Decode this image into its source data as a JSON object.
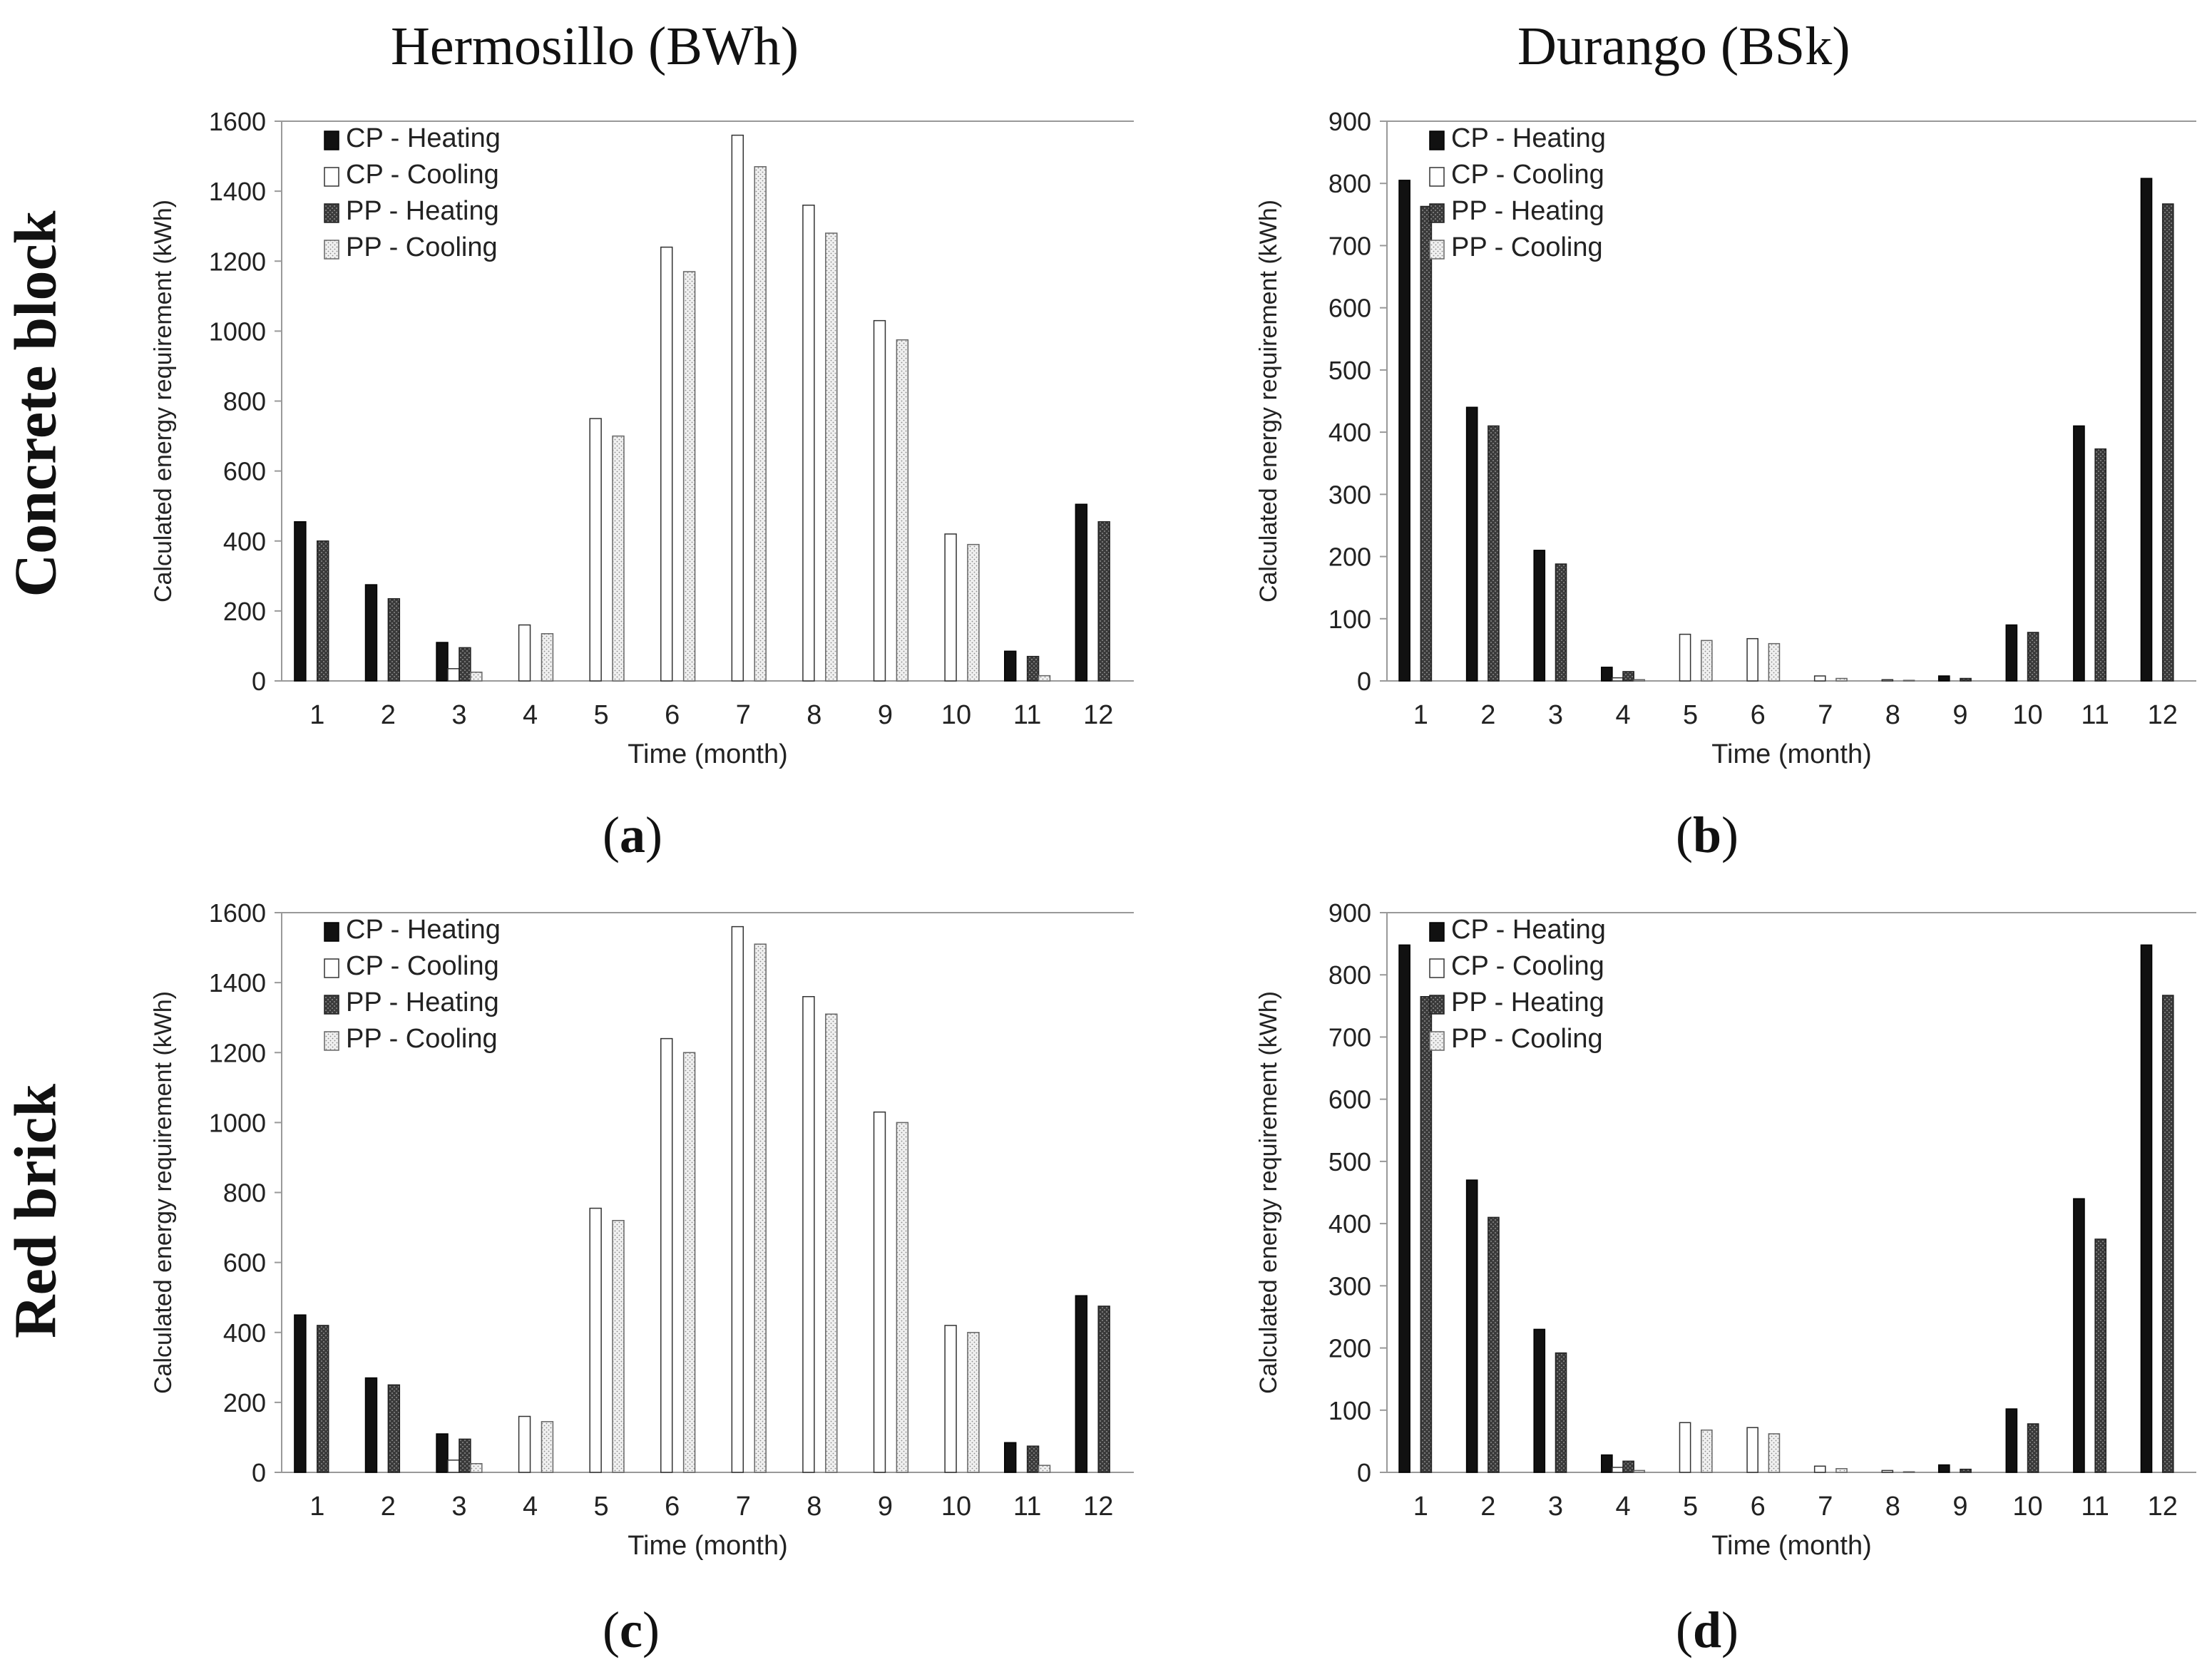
{
  "column_titles": [
    "Hermosillo (BWh)",
    "Durango (BSk)"
  ],
  "row_titles": [
    "Concrete block",
    "Red brick"
  ],
  "colors": {
    "heating_cp": "#111111",
    "heating_pp": "#3a3a3a",
    "cooling_cp": "#ffffff",
    "cooling_pp": "#f0f0f0",
    "axis": "#999999",
    "text": "#222222"
  },
  "chart_data": [
    {
      "type": "bar",
      "panel": "a",
      "title": "Hermosillo (BWh) - Concrete block",
      "categories": [
        "1",
        "2",
        "3",
        "4",
        "5",
        "6",
        "7",
        "8",
        "9",
        "10",
        "11",
        "12"
      ],
      "xlabel": "Time (month)",
      "ylabel": "Calculated energy requirement (kWh)",
      "ylim": [
        0,
        1600
      ],
      "yticks": [
        0,
        200,
        400,
        600,
        800,
        1000,
        1200,
        1400,
        1600
      ],
      "legend": [
        "CP - Heating",
        "CP - Cooling",
        "PP - Heating",
        "PP - Cooling"
      ],
      "legend_position": "top-left",
      "series": [
        {
          "name": "CP - Heating",
          "values": [
            455,
            275,
            110,
            0,
            0,
            0,
            0,
            0,
            0,
            0,
            85,
            505
          ]
        },
        {
          "name": "CP - Cooling",
          "values": [
            0,
            0,
            35,
            160,
            750,
            1240,
            1560,
            1360,
            1030,
            420,
            0,
            0
          ]
        },
        {
          "name": "PP - Heating",
          "values": [
            400,
            235,
            95,
            0,
            0,
            0,
            0,
            0,
            0,
            0,
            70,
            455
          ]
        },
        {
          "name": "PP - Cooling",
          "values": [
            0,
            0,
            25,
            135,
            700,
            1170,
            1470,
            1280,
            975,
            390,
            15,
            0
          ]
        }
      ]
    },
    {
      "type": "bar",
      "panel": "b",
      "title": "Durango (BSk) - Concrete block",
      "categories": [
        "1",
        "2",
        "3",
        "4",
        "5",
        "6",
        "7",
        "8",
        "9",
        "10",
        "11",
        "12"
      ],
      "xlabel": "Time (month)",
      "ylabel": "Calculated energy requirement (kWh)",
      "ylim": [
        0,
        900
      ],
      "yticks": [
        0,
        100,
        200,
        300,
        400,
        500,
        600,
        700,
        800,
        900
      ],
      "legend": [
        "CP - Heating",
        "CP - Cooling",
        "PP - Heating",
        "PP - Cooling"
      ],
      "legend_position": "top-left",
      "series": [
        {
          "name": "CP - Heating",
          "values": [
            805,
            440,
            210,
            22,
            0,
            0,
            0,
            0,
            8,
            90,
            410,
            808
          ]
        },
        {
          "name": "CP - Cooling",
          "values": [
            0,
            0,
            0,
            5,
            75,
            68,
            8,
            2,
            0,
            0,
            0,
            0
          ]
        },
        {
          "name": "PP - Heating",
          "values": [
            763,
            410,
            188,
            15,
            0,
            0,
            0,
            0,
            4,
            78,
            373,
            767
          ]
        },
        {
          "name": "PP - Cooling",
          "values": [
            0,
            0,
            0,
            2,
            65,
            60,
            4,
            1,
            0,
            0,
            0,
            0
          ]
        }
      ]
    },
    {
      "type": "bar",
      "panel": "c",
      "title": "Hermosillo (BWh) - Red brick",
      "categories": [
        "1",
        "2",
        "3",
        "4",
        "5",
        "6",
        "7",
        "8",
        "9",
        "10",
        "11",
        "12"
      ],
      "xlabel": "Time (month)",
      "ylabel": "Calculated energy requirement (kWh)",
      "ylim": [
        0,
        1600
      ],
      "yticks": [
        0,
        200,
        400,
        600,
        800,
        1000,
        1200,
        1400,
        1600
      ],
      "legend": [
        "CP - Heating",
        "CP - Cooling",
        "PP - Heating",
        "PP - Cooling"
      ],
      "legend_position": "top-left",
      "series": [
        {
          "name": "CP - Heating",
          "values": [
            450,
            270,
            110,
            0,
            0,
            0,
            0,
            0,
            0,
            0,
            85,
            505
          ]
        },
        {
          "name": "CP - Cooling",
          "values": [
            0,
            0,
            35,
            160,
            755,
            1240,
            1560,
            1360,
            1030,
            420,
            0,
            0
          ]
        },
        {
          "name": "PP - Heating",
          "values": [
            420,
            250,
            95,
            0,
            0,
            0,
            0,
            0,
            0,
            0,
            75,
            475
          ]
        },
        {
          "name": "PP - Cooling",
          "values": [
            0,
            0,
            25,
            145,
            720,
            1200,
            1510,
            1310,
            1000,
            400,
            20,
            0
          ]
        }
      ]
    },
    {
      "type": "bar",
      "panel": "d",
      "title": "Durango (BSk) - Red brick",
      "categories": [
        "1",
        "2",
        "3",
        "4",
        "5",
        "6",
        "7",
        "8",
        "9",
        "10",
        "11",
        "12"
      ],
      "xlabel": "Time (month)",
      "ylabel": "Calculated energy requirement (kWh)",
      "ylim": [
        0,
        900
      ],
      "yticks": [
        0,
        100,
        200,
        300,
        400,
        500,
        600,
        700,
        800,
        900
      ],
      "legend": [
        "CP - Heating",
        "CP - Cooling",
        "PP - Heating",
        "PP - Cooling"
      ],
      "legend_position": "top-left",
      "series": [
        {
          "name": "CP - Heating",
          "values": [
            848,
            470,
            230,
            28,
            0,
            0,
            0,
            0,
            12,
            102,
            440,
            848
          ]
        },
        {
          "name": "CP - Cooling",
          "values": [
            0,
            0,
            0,
            8,
            80,
            72,
            10,
            3,
            0,
            0,
            0,
            0
          ]
        },
        {
          "name": "PP - Heating",
          "values": [
            765,
            410,
            192,
            18,
            0,
            0,
            0,
            0,
            5,
            78,
            375,
            767
          ]
        },
        {
          "name": "PP - Cooling",
          "values": [
            0,
            0,
            0,
            3,
            68,
            62,
            6,
            1,
            0,
            0,
            0,
            0
          ]
        }
      ]
    }
  ],
  "panel_labels": [
    "a",
    "b",
    "c",
    "d"
  ]
}
